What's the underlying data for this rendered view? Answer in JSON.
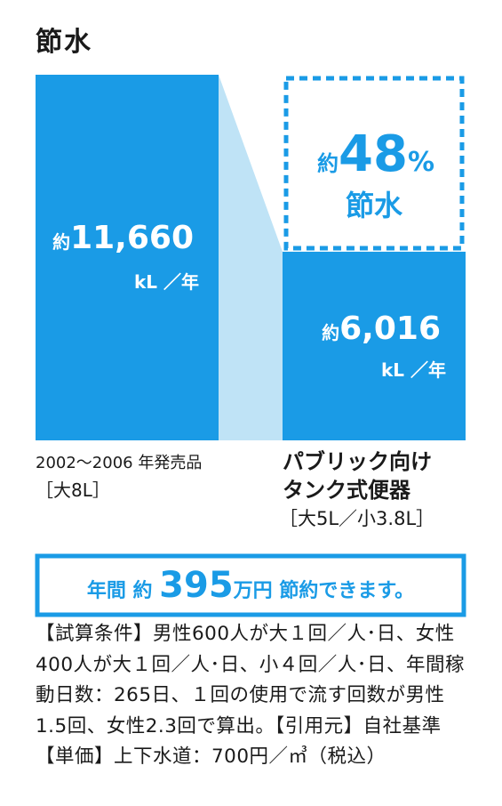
{
  "title": "節水",
  "chart_data": {
    "type": "bar",
    "categories": [
      "2002〜2006 年発売品",
      "パブリック向け タンク式便器"
    ],
    "values": [
      11660,
      6016
    ],
    "value_labels": [
      {
        "prefix": "約",
        "number": "11,660",
        "unit": "kL ／年"
      },
      {
        "prefix": "約",
        "number": "6,016",
        "unit": "kL ／年"
      }
    ],
    "category_lines": [
      [
        "2002〜2006 年発売品",
        "［大8L］"
      ],
      [
        "パブリック向け",
        "タンク式便器",
        "［大5L／小3.8L］"
      ]
    ],
    "saving": {
      "prefix": "約",
      "number": "48",
      "percent": "%",
      "label": "節水"
    },
    "bar_color": "#1a9be6",
    "connector_color": "#bfe3f6"
  },
  "summary": {
    "part1": "年間",
    "part2": "約",
    "number": "395",
    "part3": "万円",
    "part4": "節約できます。"
  },
  "note": "【試算条件】男性600人が大１回／人･日、女性400人が大１回／人･日、小４回／人･日、年間稼動日数：265日、１回の使用で流す回数が男性 1.5回、女性2.3回で算出。【引用元】自社基準【単価】上下水道：700円／㎥（税込）",
  "colors": {
    "accent": "#1a9be6",
    "light": "#bfe3f6",
    "text": "#1a1a1a"
  }
}
